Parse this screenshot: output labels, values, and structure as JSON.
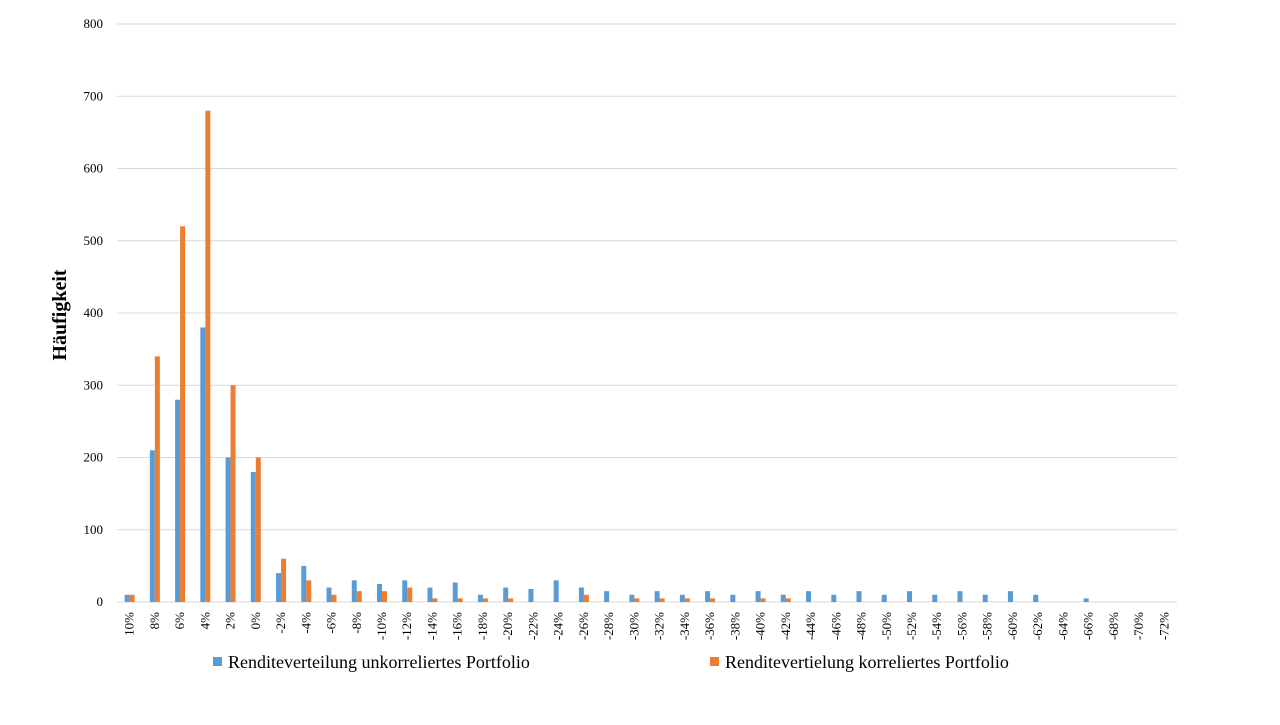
{
  "chart_data": {
    "type": "bar",
    "y_label": "Häufigkeit",
    "categories": [
      "10%",
      "8%",
      "6%",
      "4%",
      "2%",
      "0%",
      "-2%",
      "-4%",
      "-6%",
      "-8%",
      "-10%",
      "-12%",
      "-14%",
      "-16%",
      "-18%",
      "-20%",
      "-22%",
      "-24%",
      "-26%",
      "-28%",
      "-30%",
      "-32%",
      "-34%",
      "-36%",
      "-38%",
      "-40%",
      "-42%",
      "-44%",
      "-46%",
      "-48%",
      "-50%",
      "-52%",
      "-54%",
      "-56%",
      "-58%",
      "-60%",
      "-62%",
      "-64%",
      "-66%",
      "-68%",
      "-70%",
      "-72%"
    ],
    "series": [
      {
        "name": "Renditeverteilung unkorreliertes Portfolio",
        "color": "#5b9bd5",
        "values": [
          10,
          210,
          280,
          380,
          200,
          180,
          40,
          50,
          20,
          30,
          25,
          30,
          20,
          27,
          10,
          20,
          18,
          30,
          20,
          15,
          10,
          15,
          10,
          15,
          10,
          15,
          10,
          15,
          10,
          15,
          10,
          15,
          10,
          15,
          10,
          15,
          10,
          0,
          5,
          0,
          0,
          0
        ]
      },
      {
        "name": "Renditevertielung korreliertes Portfolio",
        "color": "#ed7d31",
        "values": [
          10,
          340,
          520,
          680,
          300,
          200,
          60,
          30,
          10,
          15,
          15,
          20,
          5,
          5,
          5,
          5,
          0,
          0,
          10,
          0,
          5,
          5,
          5,
          5,
          0,
          5,
          5,
          0,
          0,
          0,
          0,
          0,
          0,
          0,
          0,
          0,
          0,
          0,
          0,
          0,
          0,
          0
        ]
      }
    ],
    "ylim": [
      0,
      800
    ],
    "yticks": [
      0,
      100,
      200,
      300,
      400,
      500,
      600,
      700,
      800
    ],
    "grid": true,
    "legend": "bottom"
  }
}
